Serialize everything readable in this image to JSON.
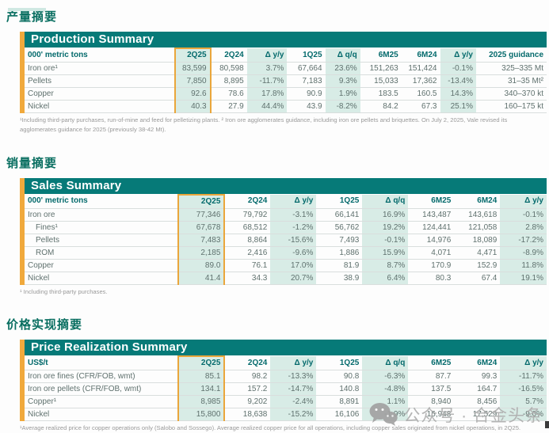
{
  "colors": {
    "band_teal": "#067a78",
    "light_teal": "#d8ece6",
    "gold_accent": "#f0a93c",
    "gold_border": "#eaa63b",
    "header_text": "#046a6c",
    "data_text": "#5f716e",
    "section_title": "#086e60",
    "footnote_gray": "#9a9a9a",
    "watermark_gray": "#aeaeae"
  },
  "sections": [
    {
      "zh_title": "产量摘要",
      "table": {
        "title": "Production Summary",
        "unit_label": "000' metric tons",
        "columns": [
          "2Q25",
          "2Q24",
          "Δ y/y",
          "1Q25",
          "Δ q/q",
          "6M25",
          "6M24",
          "Δ y/y",
          "2025 guidance"
        ],
        "rows": [
          {
            "label": "Iron ore¹",
            "indent": false,
            "values": [
              "83,599",
              "80,598",
              "3.7%",
              "67,664",
              "23.6%",
              "151,263",
              "151,424",
              "-0.1%",
              "325–335 Mt"
            ]
          },
          {
            "label": "Pellets",
            "indent": false,
            "values": [
              "7,850",
              "8,895",
              "-11.7%",
              "7,183",
              "9.3%",
              "15,033",
              "17,362",
              "-13.4%",
              "31–35 Mt²"
            ]
          },
          {
            "label": "Copper",
            "indent": false,
            "values": [
              "92.6",
              "78.6",
              "17.8%",
              "90.9",
              "1.9%",
              "183.5",
              "160.5",
              "14.3%",
              "340–370 kt"
            ]
          },
          {
            "label": "Nickel",
            "indent": false,
            "values": [
              "40.3",
              "27.9",
              "44.4%",
              "43.9",
              "-8.2%",
              "84.2",
              "67.3",
              "25.1%",
              "160–175 kt"
            ]
          }
        ],
        "footnote": "¹Including third-party purchases, run-of-mine and feed for pelletizing plants. ² Iron ore agglomerates guidance, including iron ore pellets and briquettes. On July 2, 2025, Vale revised its agglomerates guidance for 2025 (previously 38-42 Mt)."
      }
    },
    {
      "zh_title": "销量摘要",
      "table": {
        "title": "Sales Summary",
        "unit_label": "000' metric tons",
        "columns": [
          "2Q25",
          "2Q24",
          "Δ y/y",
          "1Q25",
          "Δ q/q",
          "6M25",
          "6M24",
          "Δ y/y"
        ],
        "rows": [
          {
            "label": "Iron ore",
            "indent": false,
            "values": [
              "77,346",
              "79,792",
              "-3.1%",
              "66,141",
              "16.9%",
              "143,487",
              "143,618",
              "-0.1%"
            ]
          },
          {
            "label": "Fines¹",
            "indent": true,
            "values": [
              "67,678",
              "68,512",
              "-1.2%",
              "56,762",
              "19.2%",
              "124,441",
              "121,058",
              "2.8%"
            ]
          },
          {
            "label": "Pellets",
            "indent": true,
            "values": [
              "7,483",
              "8,864",
              "-15.6%",
              "7,493",
              "-0.1%",
              "14,976",
              "18,089",
              "-17.2%"
            ]
          },
          {
            "label": "ROM",
            "indent": true,
            "values": [
              "2,185",
              "2,416",
              "-9.6%",
              "1,886",
              "15.9%",
              "4,071",
              "4,471",
              "-8.9%"
            ]
          },
          {
            "label": "Copper",
            "indent": false,
            "values": [
              "89.0",
              "76.1",
              "17.0%",
              "81.9",
              "8.7%",
              "170.9",
              "152.9",
              "11.8%"
            ]
          },
          {
            "label": "Nickel",
            "indent": false,
            "values": [
              "41.4",
              "34.3",
              "20.7%",
              "38.9",
              "6.4%",
              "80.3",
              "67.4",
              "19.1%"
            ]
          }
        ],
        "footnote": "¹ Including third-party purchases."
      }
    },
    {
      "zh_title": "价格实现摘要",
      "table": {
        "title": "Price Realization Summary",
        "unit_label": "US$/t",
        "columns": [
          "2Q25",
          "2Q24",
          "Δ y/y",
          "1Q25",
          "Δ q/q",
          "6M25",
          "6M24",
          "Δ y/y"
        ],
        "rows": [
          {
            "label": "Iron ore fines (CFR/FOB, wmt)",
            "indent": false,
            "values": [
              "85.1",
              "98.2",
              "-13.3%",
              "90.8",
              "-6.3%",
              "87.7",
              "99.3",
              "-11.7%"
            ]
          },
          {
            "label": "Iron ore pellets (CFR/FOB, wmt)",
            "indent": false,
            "values": [
              "134.1",
              "157.2",
              "-14.7%",
              "140.8",
              "-4.8%",
              "137.5",
              "164.7",
              "-16.5%"
            ]
          },
          {
            "label": "Copper¹",
            "indent": false,
            "values": [
              "8,985",
              "9,202",
              "-2.4%",
              "8,891",
              "1.1%",
              "8,940",
              "8,456",
              "5.7%"
            ]
          },
          {
            "label": "Nickel",
            "indent": false,
            "values": [
              "15,800",
              "18,638",
              "-15.2%",
              "16,106",
              "-1.9%",
              "15,948",
              "17,529",
              "-9.0%"
            ]
          }
        ],
        "footnote": "¹Average realized price for copper operations only (Salobo and Sossego). Average realized copper price for all operations, including copper sales originated from nickel operations, in 2Q25."
      }
    }
  ],
  "watermark": {
    "icon": "wechat-icon",
    "text": "公众号 · 合金头条"
  }
}
